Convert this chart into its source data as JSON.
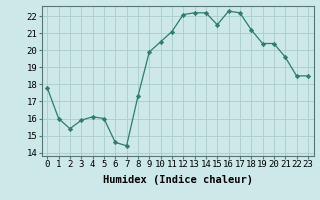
{
  "x": [
    0,
    1,
    2,
    3,
    4,
    5,
    6,
    7,
    8,
    9,
    10,
    11,
    12,
    13,
    14,
    15,
    16,
    17,
    18,
    19,
    20,
    21,
    22,
    23
  ],
  "y": [
    17.8,
    16.0,
    15.4,
    15.9,
    16.1,
    16.0,
    14.6,
    14.4,
    17.3,
    19.9,
    20.5,
    21.1,
    22.1,
    22.2,
    22.2,
    21.5,
    22.3,
    22.2,
    21.2,
    20.4,
    20.4,
    19.6,
    18.5,
    18.5
  ],
  "line_color": "#2e7d6e",
  "marker": "D",
  "marker_size": 2.2,
  "bg_color": "#cce8e8",
  "grid_color": "#aacccc",
  "xlabel": "Humidex (Indice chaleur)",
  "xlim": [
    -0.5,
    23.5
  ],
  "ylim": [
    13.8,
    22.6
  ],
  "yticks": [
    14,
    15,
    16,
    17,
    18,
    19,
    20,
    21,
    22
  ],
  "xticks": [
    0,
    1,
    2,
    3,
    4,
    5,
    6,
    7,
    8,
    9,
    10,
    11,
    12,
    13,
    14,
    15,
    16,
    17,
    18,
    19,
    20,
    21,
    22,
    23
  ],
  "xlabel_fontsize": 7.5,
  "tick_fontsize": 6.5
}
